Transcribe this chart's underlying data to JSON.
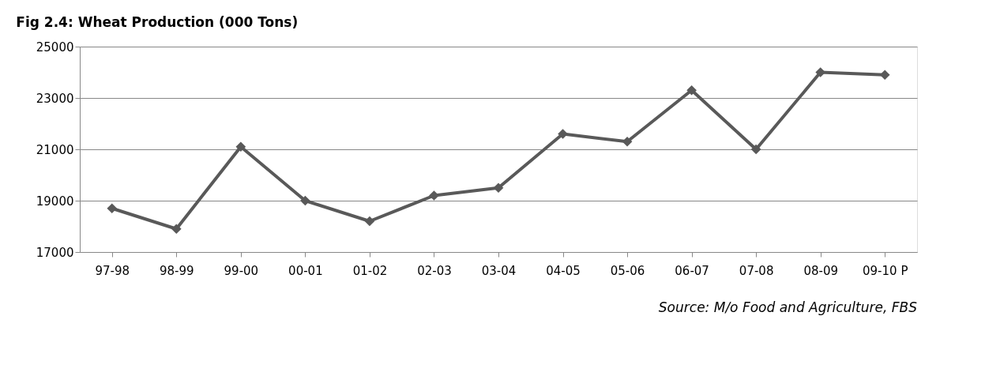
{
  "chart_data": {
    "type": "line",
    "title": "Fig 2.4: Wheat Production (000 Tons)",
    "categories": [
      "97-98",
      "98-99",
      "99-00",
      "00-01",
      "01-02",
      "02-03",
      "03-04",
      "04-05",
      "05-06",
      "06-07",
      "07-08",
      "08-09",
      "09-10 P"
    ],
    "series": [
      {
        "color": "#595959",
        "values": [
          18700,
          17900,
          21100,
          19000,
          18200,
          19200,
          19500,
          21600,
          21300,
          23300,
          21000,
          24000,
          23900
        ]
      }
    ],
    "ylim": [
      17000,
      25000
    ],
    "yticks": [
      17000,
      19000,
      21000,
      23000,
      25000
    ],
    "grid": "y",
    "marker": "diamond",
    "line_style": "solid",
    "annotations": [
      "Source: M/o Food and Agriculture, FBS"
    ]
  }
}
